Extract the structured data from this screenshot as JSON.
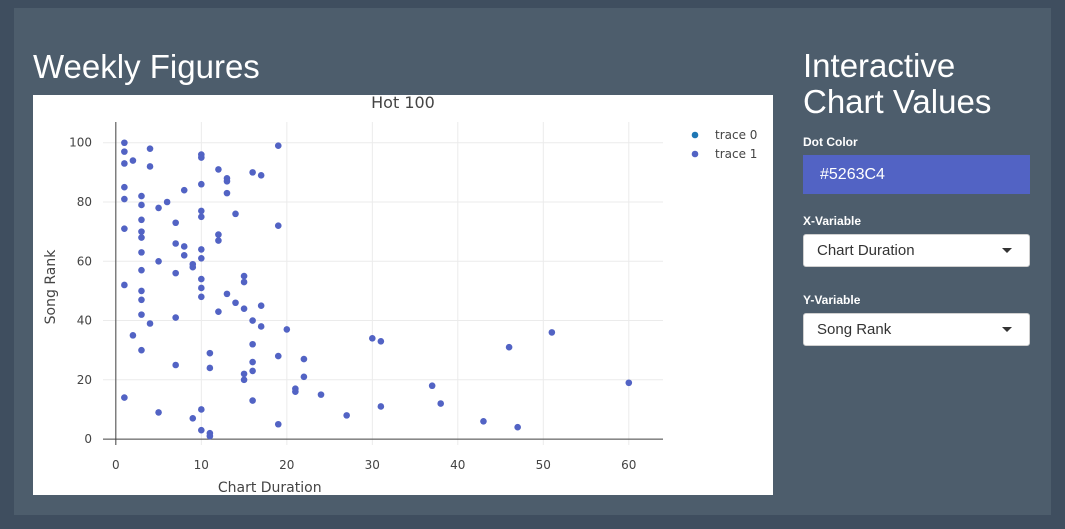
{
  "left_title": "Weekly Figures",
  "right_title_line1": "Interactive",
  "right_title_line2": "Chart Values",
  "controls": {
    "dot_color_label": "Dot Color",
    "dot_color_value": "#5263C4",
    "x_label": "X-Variable",
    "x_value": "Chart Duration",
    "y_label": "Y-Variable",
    "y_value": "Song Rank",
    "caret_icon": "caret-down-icon"
  },
  "colors": {
    "page_bg": "#3f4e5f",
    "panel_bg": "#4d5d6c",
    "dot": "#5263C4",
    "trace0": "#1f77b4"
  },
  "chart_data": {
    "type": "scatter",
    "title": "Hot 100",
    "xlabel": "Chart Duration",
    "ylabel": "Song Rank",
    "xlim": [
      -1.5,
      64
    ],
    "ylim": [
      -2,
      107
    ],
    "xticks": [
      0,
      10,
      20,
      30,
      40,
      50,
      60
    ],
    "yticks": [
      0,
      20,
      40,
      60,
      80,
      100
    ],
    "grid": true,
    "legend_position": "top-right",
    "series": [
      {
        "name": "trace 0",
        "points": []
      },
      {
        "name": "trace 1",
        "points": [
          [
            1,
            100
          ],
          [
            1,
            97
          ],
          [
            1,
            93
          ],
          [
            2,
            94
          ],
          [
            4,
            98
          ],
          [
            4,
            92
          ],
          [
            1,
            85
          ],
          [
            1,
            81
          ],
          [
            1,
            71
          ],
          [
            1,
            52
          ],
          [
            1,
            14
          ],
          [
            2,
            35
          ],
          [
            3,
            82
          ],
          [
            3,
            79
          ],
          [
            3,
            74
          ],
          [
            3,
            70
          ],
          [
            3,
            68
          ],
          [
            3,
            63
          ],
          [
            3,
            57
          ],
          [
            3,
            50
          ],
          [
            3,
            47
          ],
          [
            3,
            42
          ],
          [
            3,
            30
          ],
          [
            4,
            39
          ],
          [
            5,
            78
          ],
          [
            5,
            60
          ],
          [
            5,
            9
          ],
          [
            6,
            80
          ],
          [
            7,
            73
          ],
          [
            7,
            66
          ],
          [
            7,
            56
          ],
          [
            7,
            41
          ],
          [
            7,
            25
          ],
          [
            8,
            84
          ],
          [
            8,
            65
          ],
          [
            8,
            62
          ],
          [
            9,
            59
          ],
          [
            9,
            58
          ],
          [
            9,
            7
          ],
          [
            10,
            96
          ],
          [
            10,
            95
          ],
          [
            10,
            86
          ],
          [
            10,
            77
          ],
          [
            10,
            75
          ],
          [
            10,
            64
          ],
          [
            10,
            61
          ],
          [
            10,
            54
          ],
          [
            10,
            51
          ],
          [
            10,
            48
          ],
          [
            10,
            10
          ],
          [
            10,
            3
          ],
          [
            11,
            29
          ],
          [
            11,
            24
          ],
          [
            11,
            2
          ],
          [
            11,
            1
          ],
          [
            12,
            91
          ],
          [
            12,
            69
          ],
          [
            12,
            67
          ],
          [
            12,
            43
          ],
          [
            13,
            88
          ],
          [
            13,
            87
          ],
          [
            13,
            83
          ],
          [
            13,
            49
          ],
          [
            14,
            76
          ],
          [
            14,
            46
          ],
          [
            15,
            55
          ],
          [
            15,
            53
          ],
          [
            15,
            44
          ],
          [
            15,
            22
          ],
          [
            15,
            20
          ],
          [
            16,
            90
          ],
          [
            16,
            40
          ],
          [
            16,
            32
          ],
          [
            16,
            26
          ],
          [
            16,
            23
          ],
          [
            16,
            13
          ],
          [
            17,
            89
          ],
          [
            17,
            45
          ],
          [
            17,
            38
          ],
          [
            19,
            99
          ],
          [
            19,
            72
          ],
          [
            19,
            28
          ],
          [
            19,
            5
          ],
          [
            20,
            37
          ],
          [
            21,
            17
          ],
          [
            21,
            16
          ],
          [
            22,
            27
          ],
          [
            22,
            21
          ],
          [
            24,
            15
          ],
          [
            27,
            8
          ],
          [
            30,
            34
          ],
          [
            31,
            33
          ],
          [
            31,
            11
          ],
          [
            37,
            18
          ],
          [
            38,
            12
          ],
          [
            43,
            6
          ],
          [
            46,
            31
          ],
          [
            47,
            4
          ],
          [
            51,
            36
          ],
          [
            60,
            19
          ]
        ]
      }
    ]
  }
}
